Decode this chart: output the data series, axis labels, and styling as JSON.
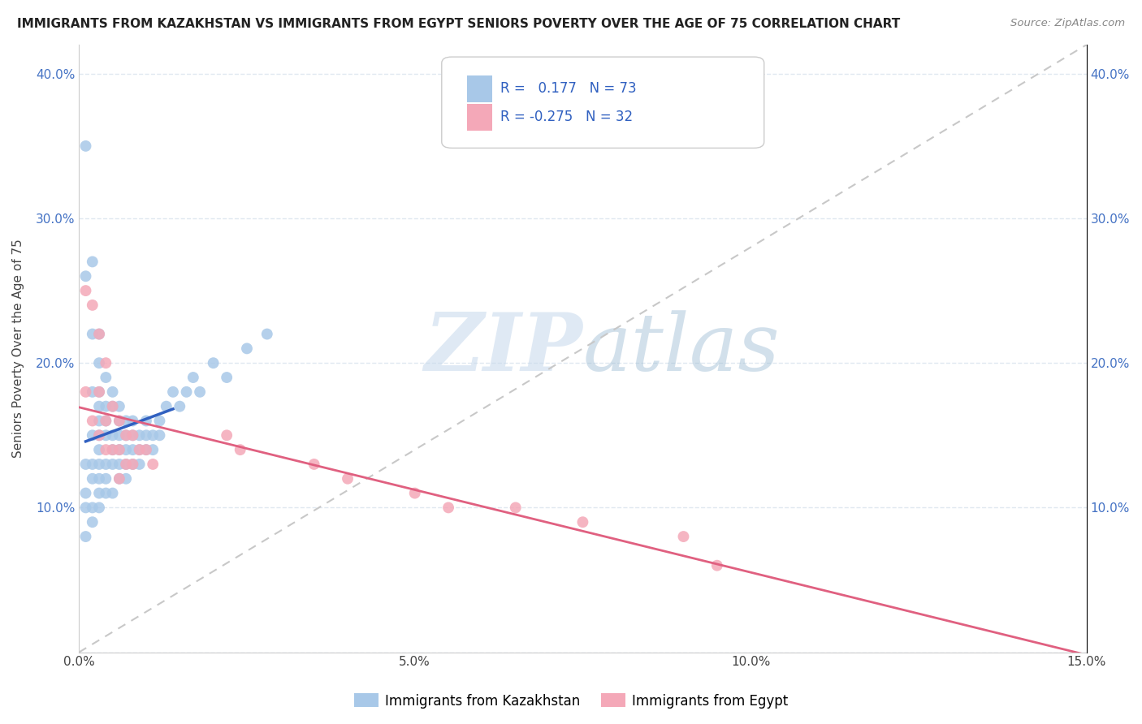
{
  "title": "IMMIGRANTS FROM KAZAKHSTAN VS IMMIGRANTS FROM EGYPT SENIORS POVERTY OVER THE AGE OF 75 CORRELATION CHART",
  "source": "Source: ZipAtlas.com",
  "ylabel": "Seniors Poverty Over the Age of 75",
  "xlim": [
    0.0,
    0.15
  ],
  "ylim": [
    0.0,
    0.42
  ],
  "kaz_color": "#a8c8e8",
  "egypt_color": "#f4a8b8",
  "kaz_line_color": "#3060c0",
  "egypt_line_color": "#e06080",
  "ref_line_color": "#c8c8c8",
  "kaz_R": 0.177,
  "kaz_N": 73,
  "egypt_R": -0.275,
  "egypt_N": 32,
  "watermark_zip": "ZIP",
  "watermark_atlas": "atlas",
  "grid_color": "#e0e8f0",
  "kaz_x": [
    0.001,
    0.001,
    0.001,
    0.001,
    0.001,
    0.001,
    0.002,
    0.002,
    0.002,
    0.002,
    0.002,
    0.002,
    0.002,
    0.002,
    0.003,
    0.003,
    0.003,
    0.003,
    0.003,
    0.003,
    0.003,
    0.003,
    0.003,
    0.003,
    0.003,
    0.004,
    0.004,
    0.004,
    0.004,
    0.004,
    0.004,
    0.004,
    0.005,
    0.005,
    0.005,
    0.005,
    0.005,
    0.005,
    0.006,
    0.006,
    0.006,
    0.006,
    0.006,
    0.006,
    0.007,
    0.007,
    0.007,
    0.007,
    0.007,
    0.008,
    0.008,
    0.008,
    0.008,
    0.009,
    0.009,
    0.009,
    0.01,
    0.01,
    0.01,
    0.011,
    0.011,
    0.012,
    0.012,
    0.013,
    0.014,
    0.015,
    0.016,
    0.017,
    0.018,
    0.02,
    0.022,
    0.025,
    0.028
  ],
  "kaz_y": [
    0.35,
    0.26,
    0.13,
    0.11,
    0.1,
    0.08,
    0.27,
    0.22,
    0.18,
    0.15,
    0.13,
    0.12,
    0.1,
    0.09,
    0.22,
    0.2,
    0.18,
    0.17,
    0.16,
    0.15,
    0.14,
    0.13,
    0.12,
    0.11,
    0.1,
    0.19,
    0.17,
    0.16,
    0.15,
    0.13,
    0.12,
    0.11,
    0.18,
    0.17,
    0.15,
    0.14,
    0.13,
    0.11,
    0.17,
    0.16,
    0.15,
    0.14,
    0.13,
    0.12,
    0.16,
    0.15,
    0.14,
    0.13,
    0.12,
    0.16,
    0.15,
    0.14,
    0.13,
    0.15,
    0.14,
    0.13,
    0.16,
    0.15,
    0.14,
    0.15,
    0.14,
    0.16,
    0.15,
    0.17,
    0.18,
    0.17,
    0.18,
    0.19,
    0.18,
    0.2,
    0.19,
    0.21,
    0.22
  ],
  "egypt_x": [
    0.001,
    0.001,
    0.002,
    0.002,
    0.003,
    0.003,
    0.003,
    0.004,
    0.004,
    0.004,
    0.005,
    0.005,
    0.006,
    0.006,
    0.006,
    0.007,
    0.007,
    0.008,
    0.008,
    0.009,
    0.01,
    0.011,
    0.022,
    0.024,
    0.035,
    0.04,
    0.05,
    0.055,
    0.065,
    0.075,
    0.09,
    0.095
  ],
  "egypt_y": [
    0.25,
    0.18,
    0.24,
    0.16,
    0.22,
    0.18,
    0.15,
    0.2,
    0.16,
    0.14,
    0.17,
    0.14,
    0.16,
    0.14,
    0.12,
    0.15,
    0.13,
    0.15,
    0.13,
    0.14,
    0.14,
    0.13,
    0.15,
    0.14,
    0.13,
    0.12,
    0.11,
    0.1,
    0.1,
    0.09,
    0.08,
    0.06
  ]
}
